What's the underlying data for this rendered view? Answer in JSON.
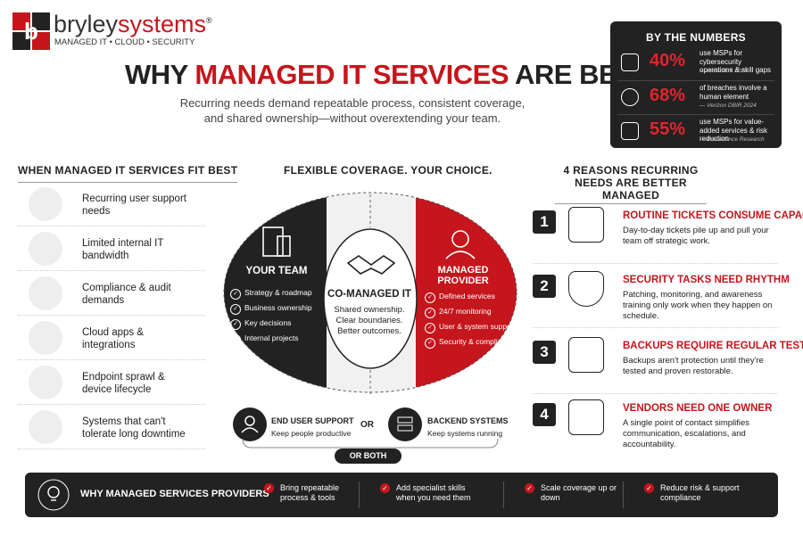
{
  "brand": {
    "name": [
      "bryley",
      "systems"
    ],
    "mark": "®",
    "tagline": "MANAGED IT • CLOUD • SECURITY"
  },
  "header": {
    "title": [
      "WHY ",
      "MANAGED IT SERVICES",
      " ARE BETTER"
    ],
    "subtitle": "Recurring needs demand repeatable process, consistent coverage, and shared ownership—without overextending your team."
  },
  "numbers": {
    "title": "BY THE NUMBERS",
    "items": [
      {
        "value": "40%",
        "text": "use MSPs for cybersecurity operations & skill gaps",
        "source": "— Accenture 2023"
      },
      {
        "value": "68%",
        "text": "of breaches involve a human element",
        "source": "— Verizon DBIR 2024"
      },
      {
        "value": "55%",
        "text": "use MSPs for value-added services & risk reduction",
        "source": "— Precedence Research"
      }
    ]
  },
  "fit": {
    "title": "WHEN MANAGED IT SERVICES FIT BEST",
    "items": [
      "Recurring user support needs",
      "Limited internal IT bandwidth",
      "Compliance & audit demands",
      "Cloud apps & integrations",
      "Endpoint sprawl & device lifecycle",
      "Systems that can't tolerate long downtime"
    ]
  },
  "coverage": {
    "title": "FLEXIBLE COVERAGE. YOUR CHOICE.",
    "your_team": {
      "title": "YOUR TEAM",
      "items": [
        "Strategy & roadmap",
        "Business ownership",
        "Key decisions",
        "Internal projects"
      ]
    },
    "co_managed": {
      "title": "CO-MANAGED IT",
      "text": [
        "Shared ownership.",
        "Clear boundaries.",
        "Better outcomes."
      ]
    },
    "provider": {
      "title": "MANAGED PROVIDER",
      "items": [
        "Defined services",
        "24/7 monitoring",
        "User & system support",
        "Security & compliance"
      ]
    },
    "end_user": {
      "title": "END USER SUPPORT",
      "text": "Keep people productive"
    },
    "or": "OR",
    "backend": {
      "title": "BACKEND SYSTEMS",
      "text": "Keep systems running"
    },
    "both": "OR BOTH"
  },
  "reasons": {
    "title": "4 REASONS RECURRING NEEDS ARE BETTER MANAGED",
    "items": [
      {
        "number": "1",
        "title": "ROUTINE TICKETS CONSUME CAPACITY",
        "text": "Day-to-day tickets pile up and pull your team off strategic work."
      },
      {
        "number": "2",
        "title": "SECURITY TASKS NEED RHYTHM",
        "text": "Patching, monitoring, and awareness training only work when they happen on schedule."
      },
      {
        "number": "3",
        "title": "BACKUPS REQUIRE REGULAR TESTING",
        "text": "Backups aren't protection until they're tested and proven restorable."
      },
      {
        "number": "4",
        "title": "VENDORS NEED ONE OWNER",
        "text": "A single point of contact simplifies communication, escalations, and accountability."
      }
    ]
  },
  "footer": {
    "title": "WHY MANAGED SERVICES PROVIDERS",
    "items": [
      "Bring repeatable process & tools",
      "Add specialist skills when you need them",
      "Scale coverage up or down",
      "Reduce risk & support compliance"
    ]
  }
}
